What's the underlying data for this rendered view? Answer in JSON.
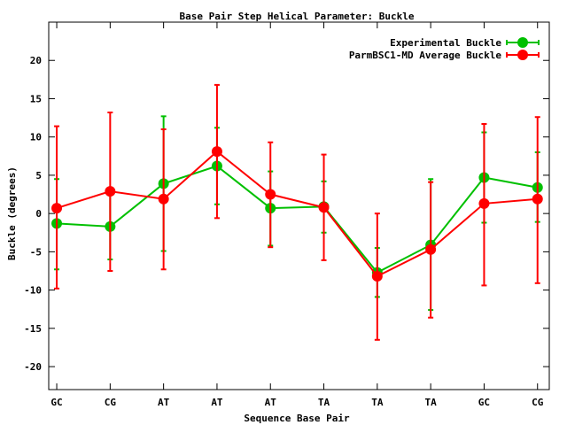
{
  "chart_data": {
    "type": "line",
    "title": "Base Pair Step Helical Parameter: Buckle",
    "xlabel": "Sequence Base Pair",
    "ylabel": "Buckle (degrees)",
    "categories": [
      "GC",
      "CG",
      "AT",
      "AT",
      "AT",
      "TA",
      "TA",
      "TA",
      "GC",
      "CG"
    ],
    "ylim": [
      -23,
      25
    ],
    "yticks": [
      -20,
      -15,
      -10,
      -5,
      0,
      5,
      10,
      15,
      20
    ],
    "grid": false,
    "legend_position": "top-right",
    "series": [
      {
        "name": "Experimental Buckle",
        "color": "#00c000",
        "values": [
          -1.3,
          -1.7,
          3.9,
          6.2,
          0.7,
          0.9,
          -7.7,
          -4.1,
          4.7,
          3.4
        ],
        "err_high": [
          4.5,
          2.6,
          12.7,
          11.2,
          5.5,
          4.2,
          -4.5,
          4.5,
          10.6,
          8.0
        ],
        "err_low": [
          -7.3,
          -6.0,
          -4.9,
          1.2,
          -4.2,
          -2.5,
          -10.9,
          -12.6,
          -1.2,
          -1.1
        ]
      },
      {
        "name": "ParmBSC1-MD Average Buckle",
        "color": "#ff0000",
        "values": [
          0.7,
          2.9,
          1.9,
          8.1,
          2.5,
          0.8,
          -8.2,
          -4.7,
          1.3,
          1.9
        ],
        "err_high": [
          11.4,
          13.2,
          11.0,
          16.8,
          9.3,
          7.7,
          0.0,
          4.1,
          11.7,
          12.6
        ],
        "err_low": [
          -9.8,
          -7.5,
          -7.3,
          -0.6,
          -4.4,
          -6.1,
          -16.5,
          -13.6,
          -9.4,
          -9.1
        ]
      }
    ]
  }
}
